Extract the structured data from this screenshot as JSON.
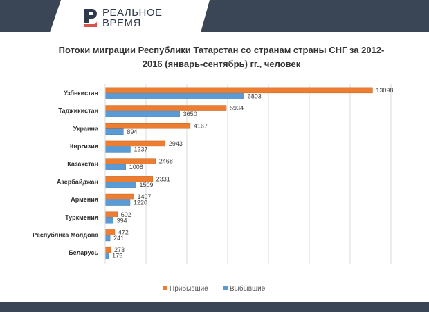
{
  "brand": {
    "line1": "РЕАЛЬНОЕ",
    "line2": "ВРЕМЯ"
  },
  "colors": {
    "arrived": "#ed7d31",
    "left": "#5b9bd5",
    "header": "#3a4556",
    "logo_red": "#d9534f"
  },
  "chart_data": {
    "type": "bar",
    "orientation": "horizontal",
    "title": "Потоки миграции Республики Татарстан со странам страны СНГ за 2012-2016 (январь-сентябрь)  гг., человек",
    "title_line1": "Потоки миграции Республики Татарстан со странам страны СНГ за 2012-",
    "title_line2": "2016 (январь-сентябрь)  гг., человек",
    "categories": [
      "Узбекистан",
      "Таджикистан",
      "Украина",
      "Киргизия",
      "Казахстан",
      "Азербайджан",
      "Армения",
      "Туркмения",
      "Республика Молдова",
      "Беларусь"
    ],
    "series": [
      {
        "name": "Прибывшие",
        "values": [
          13098,
          5934,
          4167,
          2943,
          2468,
          2331,
          1407,
          602,
          472,
          273
        ]
      },
      {
        "name": "Выбывшие",
        "values": [
          6803,
          3650,
          894,
          1237,
          1008,
          1509,
          1220,
          394,
          241,
          175
        ]
      }
    ],
    "xlim": [
      0,
      14000
    ],
    "grid_step": 2000,
    "grid": true,
    "legend": "bottom"
  }
}
